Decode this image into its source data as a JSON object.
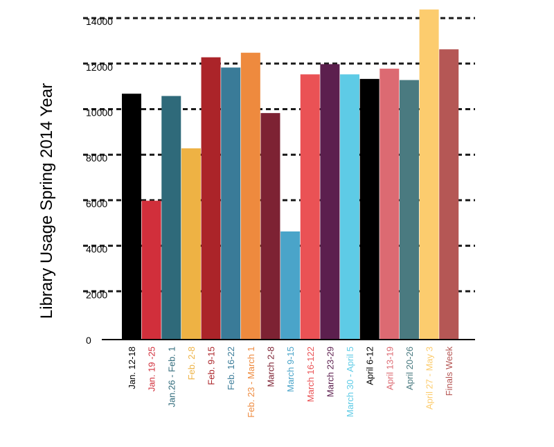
{
  "chart_data": {
    "type": "bar",
    "title": "",
    "xlabel": "",
    "ylabel": "Library Usage Spring 2014 Year",
    "ylim": [
      0,
      14000
    ],
    "grid": true,
    "legend": "none",
    "y_ticks": [
      "0",
      "2000",
      "4000",
      "6000",
      "8000",
      "10000",
      "12000",
      "14000"
    ],
    "categories": [
      "Jan. 12-18",
      "Jan. 19 -25",
      "Jan.26 - Feb. 1",
      "Feb. 2-8",
      "Feb. 9-15",
      "Feb. 16-22",
      "Feb. 23 - March 1",
      "March 2-8",
      "March 9-15",
      "March 16-122",
      "March 23-29",
      "March 30 - April 5",
      "April 6-12",
      "April 13-19",
      "April 20-26",
      "April 27 - May 3",
      "Finals Week"
    ],
    "values": [
      10800,
      6100,
      10700,
      8400,
      12400,
      11950,
      12600,
      9950,
      4750,
      11650,
      12100,
      11650,
      11450,
      11900,
      11400,
      14500,
      12750
    ],
    "colors": [
      "#000000",
      "#d12f3b",
      "#2f6a7a",
      "#eeb244",
      "#ab2429",
      "#3a7b98",
      "#ee8a3e",
      "#7d2233",
      "#4aa4c9",
      "#ea5255",
      "#5c1f4e",
      "#5ecbe6",
      "#000000",
      "#dc6a72",
      "#4a7a80",
      "#fccc6e",
      "#b55755"
    ]
  }
}
